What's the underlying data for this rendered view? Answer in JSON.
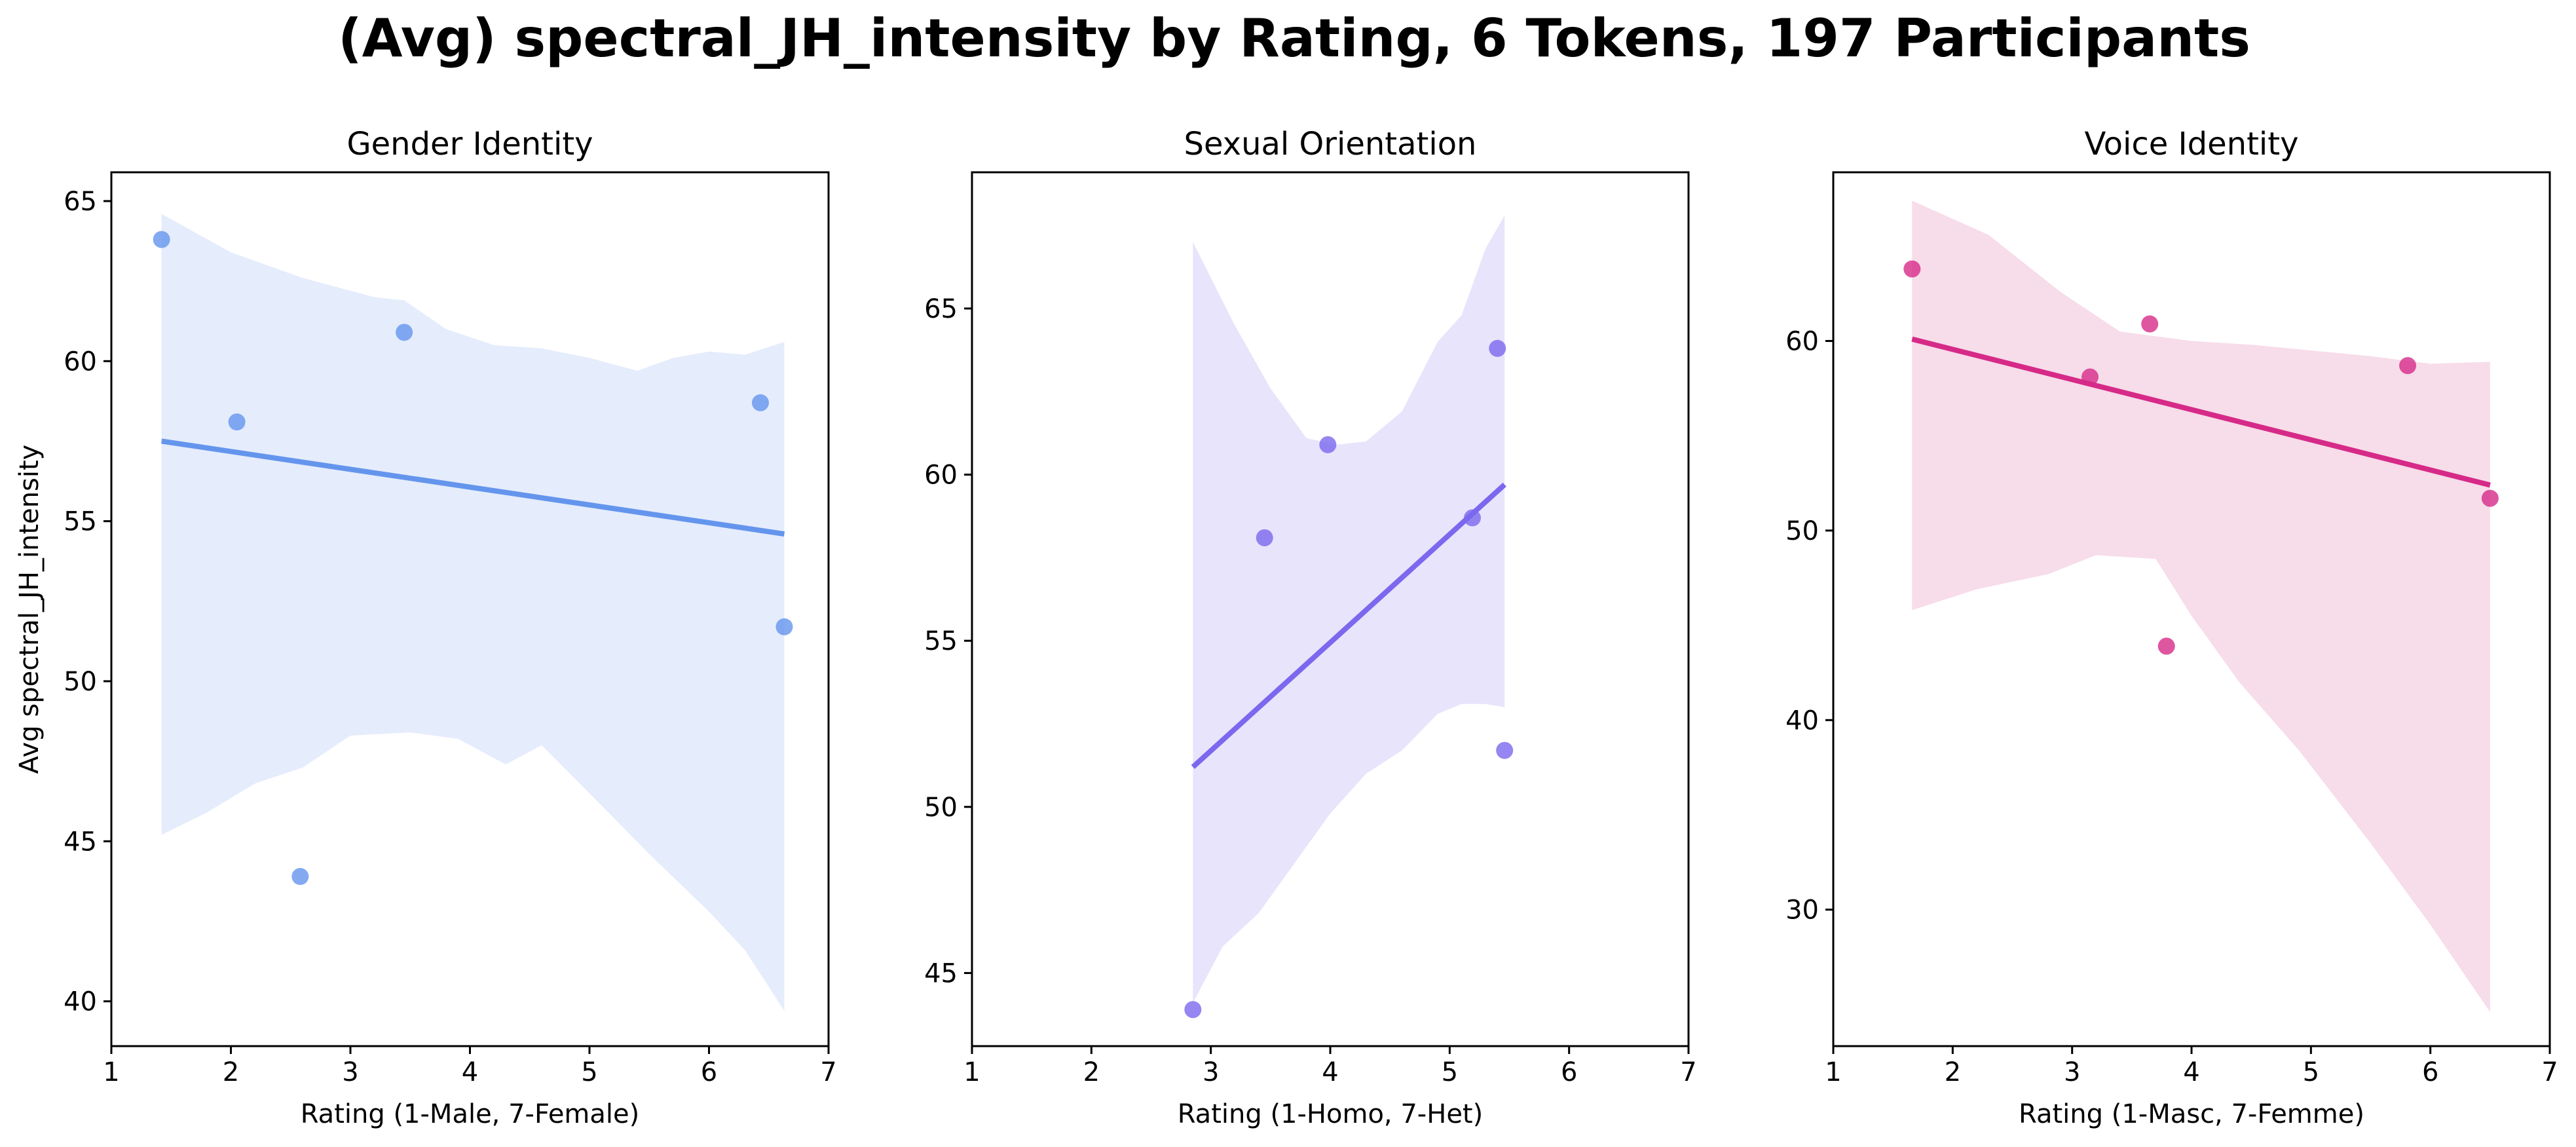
{
  "chart_data": {
    "title": "(Avg) spectral_JH_intensity by Rating, 6 Tokens, 197 Participants",
    "panels": [
      {
        "type": "scatter",
        "title": "Gender Identity",
        "xlabel": "Rating (1-Male, 7-Female)",
        "ylabel": "Avg spectral_JH_intensity",
        "xlim": [
          1,
          7
        ],
        "ylim": [
          38.6,
          65.9
        ],
        "xticks": [
          1,
          2,
          3,
          4,
          5,
          6,
          7
        ],
        "yticks": [
          40,
          45,
          50,
          55,
          60,
          65
        ],
        "color": "#6495ED",
        "band_color": "#E5ECFC",
        "points": [
          {
            "x": 1.42,
            "y": 63.8
          },
          {
            "x": 2.05,
            "y": 58.1
          },
          {
            "x": 2.58,
            "y": 43.9
          },
          {
            "x": 3.45,
            "y": 60.9
          },
          {
            "x": 6.43,
            "y": 58.7
          },
          {
            "x": 6.63,
            "y": 51.7
          }
        ],
        "fit": {
          "x": [
            1.42,
            6.63
          ],
          "y": [
            57.5,
            54.6
          ]
        },
        "ci_band": {
          "upper": [
            [
              1.42,
              64.6
            ],
            [
              2.0,
              63.4
            ],
            [
              2.6,
              62.6
            ],
            [
              3.2,
              62.0
            ],
            [
              3.45,
              61.9
            ],
            [
              3.8,
              61.0
            ],
            [
              4.2,
              60.5
            ],
            [
              4.6,
              60.4
            ],
            [
              5.0,
              60.1
            ],
            [
              5.4,
              59.7
            ],
            [
              5.7,
              60.1
            ],
            [
              6.0,
              60.3
            ],
            [
              6.3,
              60.2
            ],
            [
              6.63,
              60.6
            ]
          ],
          "lower": [
            [
              1.42,
              45.2
            ],
            [
              1.8,
              45.9
            ],
            [
              2.2,
              46.8
            ],
            [
              2.6,
              47.3
            ],
            [
              3.0,
              48.3
            ],
            [
              3.5,
              48.4
            ],
            [
              3.9,
              48.2
            ],
            [
              4.3,
              47.4
            ],
            [
              4.6,
              48.0
            ],
            [
              5.0,
              46.5
            ],
            [
              5.5,
              44.6
            ],
            [
              6.0,
              42.8
            ],
            [
              6.3,
              41.6
            ],
            [
              6.63,
              39.7
            ]
          ]
        }
      },
      {
        "type": "scatter",
        "title": "Sexual Orientation",
        "xlabel": "Rating (1-Homo, 7-Het)",
        "ylabel": "",
        "xlim": [
          1,
          7
        ],
        "ylim": [
          42.8,
          69.1
        ],
        "xticks": [
          1,
          2,
          3,
          4,
          5,
          6,
          7
        ],
        "yticks": [
          45,
          50,
          55,
          60,
          65
        ],
        "color": "#7B68EE",
        "band_color": "#E8E4FB",
        "points": [
          {
            "x": 2.85,
            "y": 43.9
          },
          {
            "x": 3.45,
            "y": 58.1
          },
          {
            "x": 3.98,
            "y": 60.9
          },
          {
            "x": 5.19,
            "y": 58.7
          },
          {
            "x": 5.4,
            "y": 63.8
          },
          {
            "x": 5.46,
            "y": 51.7
          }
        ],
        "fit": {
          "x": [
            2.85,
            5.46
          ],
          "y": [
            51.2,
            59.7
          ]
        },
        "ci_band": {
          "upper": [
            [
              2.85,
              67.0
            ],
            [
              3.2,
              64.5
            ],
            [
              3.5,
              62.6
            ],
            [
              3.8,
              61.1
            ],
            [
              4.05,
              60.9
            ],
            [
              4.3,
              61.0
            ],
            [
              4.6,
              61.9
            ],
            [
              4.9,
              64.0
            ],
            [
              5.1,
              64.8
            ],
            [
              5.3,
              66.8
            ],
            [
              5.46,
              67.8
            ]
          ],
          "lower": [
            [
              2.85,
              44.1
            ],
            [
              3.1,
              45.8
            ],
            [
              3.4,
              46.8
            ],
            [
              3.7,
              48.3
            ],
            [
              4.0,
              49.8
            ],
            [
              4.3,
              51.0
            ],
            [
              4.6,
              51.7
            ],
            [
              4.9,
              52.8
            ],
            [
              5.1,
              53.1
            ],
            [
              5.3,
              53.1
            ],
            [
              5.46,
              53.0
            ]
          ]
        }
      },
      {
        "type": "scatter",
        "title": "Voice Identity",
        "xlabel": "Rating (1-Masc, 7-Femme)",
        "ylabel": "",
        "xlim": [
          1,
          7
        ],
        "ylim": [
          22.8,
          68.9
        ],
        "xticks": [
          1,
          2,
          3,
          4,
          5,
          6,
          7
        ],
        "yticks": [
          30,
          40,
          50,
          60
        ],
        "color": "#D62A88",
        "band_color": "#F7DCE9",
        "points": [
          {
            "x": 1.66,
            "y": 63.8
          },
          {
            "x": 3.15,
            "y": 58.1
          },
          {
            "x": 3.65,
            "y": 60.9
          },
          {
            "x": 3.79,
            "y": 43.9
          },
          {
            "x": 5.81,
            "y": 58.7
          },
          {
            "x": 6.5,
            "y": 51.7
          }
        ],
        "fit": {
          "x": [
            1.66,
            6.5
          ],
          "y": [
            60.1,
            52.4
          ]
        },
        "ci_band": {
          "upper": [
            [
              1.66,
              67.4
            ],
            [
              2.3,
              65.6
            ],
            [
              2.9,
              62.6
            ],
            [
              3.4,
              60.5
            ],
            [
              4.0,
              60.0
            ],
            [
              4.5,
              59.8
            ],
            [
              5.0,
              59.5
            ],
            [
              5.5,
              59.2
            ],
            [
              6.0,
              58.8
            ],
            [
              6.5,
              58.9
            ]
          ],
          "lower": [
            [
              1.66,
              45.8
            ],
            [
              2.2,
              46.9
            ],
            [
              2.8,
              47.7
            ],
            [
              3.2,
              48.7
            ],
            [
              3.7,
              48.5
            ],
            [
              4.0,
              45.5
            ],
            [
              4.4,
              42.0
            ],
            [
              4.9,
              38.4
            ],
            [
              5.5,
              33.5
            ],
            [
              6.0,
              29.2
            ],
            [
              6.5,
              24.6
            ]
          ]
        }
      }
    ]
  }
}
